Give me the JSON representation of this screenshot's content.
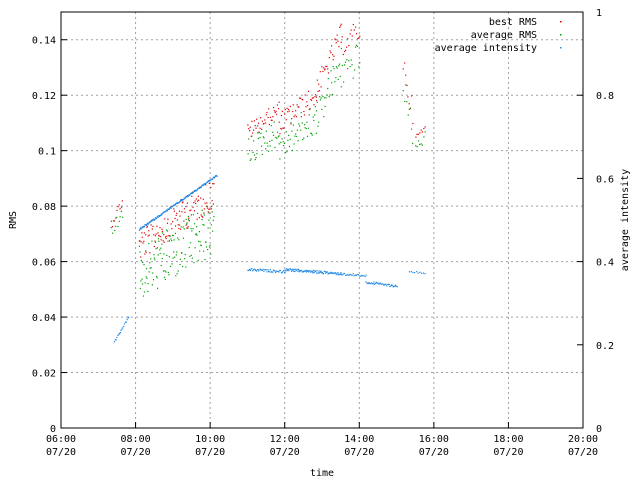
{
  "chart_data": {
    "type": "scatter",
    "title": "",
    "xlabel": "time",
    "ylabel": "RMS",
    "y2label": "average intensity",
    "grid": true,
    "legend_position": "top-right",
    "xlim": [
      "06:00",
      "20:00"
    ],
    "ylim": [
      0,
      0.15
    ],
    "y2lim": [
      0,
      1
    ],
    "x_ticks": [
      {
        "time": "06:00",
        "date": "07/20"
      },
      {
        "time": "08:00",
        "date": "07/20"
      },
      {
        "time": "10:00",
        "date": "07/20"
      },
      {
        "time": "12:00",
        "date": "07/20"
      },
      {
        "time": "14:00",
        "date": "07/20"
      },
      {
        "time": "16:00",
        "date": "07/20"
      },
      {
        "time": "18:00",
        "date": "07/20"
      },
      {
        "time": "20:00",
        "date": "07/20"
      }
    ],
    "y_ticks": [
      "0",
      "0.02",
      "0.04",
      "0.06",
      "0.08",
      "0.1",
      "0.12",
      "0.14"
    ],
    "y_tick_values": [
      0,
      0.02,
      0.04,
      0.06,
      0.08,
      0.1,
      0.12,
      0.14
    ],
    "y2_ticks": [
      "0",
      "0.2",
      "0.4",
      "0.6",
      "0.8",
      "1"
    ],
    "y2_tick_values": [
      0,
      0.2,
      0.4,
      0.6,
      0.8,
      1
    ],
    "series": [
      {
        "name": "best RMS",
        "color": "#e00000",
        "axis": "y",
        "segments": [
          {
            "t0": "07:20",
            "t1": "07:38",
            "y": [
              0.076,
              0.084
            ],
            "spread": 0.004,
            "density": 6
          },
          {
            "t0": "08:05",
            "t1": "10:05",
            "y": [
              0.072,
              0.091
            ],
            "spread": 0.012,
            "density": 10
          },
          {
            "t0": "11:00",
            "t1": "11:50",
            "y": [
              0.11,
              0.118
            ],
            "spread": 0.006,
            "density": 8
          },
          {
            "t0": "11:50",
            "t1": "12:50",
            "y": [
              0.114,
              0.124
            ],
            "spread": 0.008,
            "density": 8
          },
          {
            "t0": "12:50",
            "t1": "13:30",
            "y": [
              0.126,
              0.146
            ],
            "spread": 0.008,
            "density": 8
          },
          {
            "t0": "13:30",
            "t1": "14:00",
            "y": [
              0.142,
              0.148
            ],
            "spread": 0.008,
            "density": 6
          },
          {
            "t0": "15:10",
            "t1": "15:25",
            "y": [
              0.135,
              0.118
            ],
            "spread": 0.008,
            "density": 6
          },
          {
            "t0": "15:30",
            "t1": "15:45",
            "y": [
              0.106,
              0.11
            ],
            "spread": 0.003,
            "density": 5
          }
        ]
      },
      {
        "name": "average RMS",
        "color": "#00a000",
        "axis": "y",
        "segments": [
          {
            "t0": "07:20",
            "t1": "07:38",
            "y": [
              0.074,
              0.082
            ],
            "spread": 0.006,
            "density": 6
          },
          {
            "t0": "08:05",
            "t1": "10:05",
            "y": [
              0.066,
              0.082
            ],
            "spread": 0.02,
            "density": 12
          },
          {
            "t0": "11:00",
            "t1": "11:50",
            "y": [
              0.105,
              0.112
            ],
            "spread": 0.01,
            "density": 8
          },
          {
            "t0": "11:50",
            "t1": "12:50",
            "y": [
              0.108,
              0.118
            ],
            "spread": 0.012,
            "density": 8
          },
          {
            "t0": "12:50",
            "t1": "13:30",
            "y": [
              0.118,
              0.138
            ],
            "spread": 0.012,
            "density": 8
          },
          {
            "t0": "13:30",
            "t1": "14:00",
            "y": [
              0.134,
              0.14
            ],
            "spread": 0.012,
            "density": 6
          },
          {
            "t0": "15:10",
            "t1": "15:25",
            "y": [
              0.128,
              0.112
            ],
            "spread": 0.01,
            "density": 6
          },
          {
            "t0": "15:30",
            "t1": "15:45",
            "y": [
              0.103,
              0.107
            ],
            "spread": 0.004,
            "density": 5
          }
        ]
      },
      {
        "name": "average intensity",
        "color": "#1e88e5",
        "axis": "y2",
        "segments": [
          {
            "t0": "07:25",
            "t1": "07:48",
            "y": [
              0.21,
              0.27
            ],
            "spread": 0.004,
            "density": 8
          },
          {
            "t0": "08:05",
            "t1": "10:10",
            "y": [
              0.48,
              0.61
            ],
            "spread": 0.004,
            "density": 12
          },
          {
            "t0": "11:00",
            "t1": "12:00",
            "y": [
              0.385,
              0.38
            ],
            "spread": 0.006,
            "density": 8
          },
          {
            "t0": "12:00",
            "t1": "13:30",
            "y": [
              0.385,
              0.375
            ],
            "spread": 0.006,
            "density": 10
          },
          {
            "t0": "13:30",
            "t1": "14:10",
            "y": [
              0.375,
              0.37
            ],
            "spread": 0.006,
            "density": 6
          },
          {
            "t0": "14:10",
            "t1": "15:00",
            "y": [
              0.355,
              0.345
            ],
            "spread": 0.006,
            "density": 8
          },
          {
            "t0": "15:20",
            "t1": "15:45",
            "y": [
              0.38,
              0.375
            ],
            "spread": 0.004,
            "density": 4
          }
        ]
      }
    ]
  }
}
